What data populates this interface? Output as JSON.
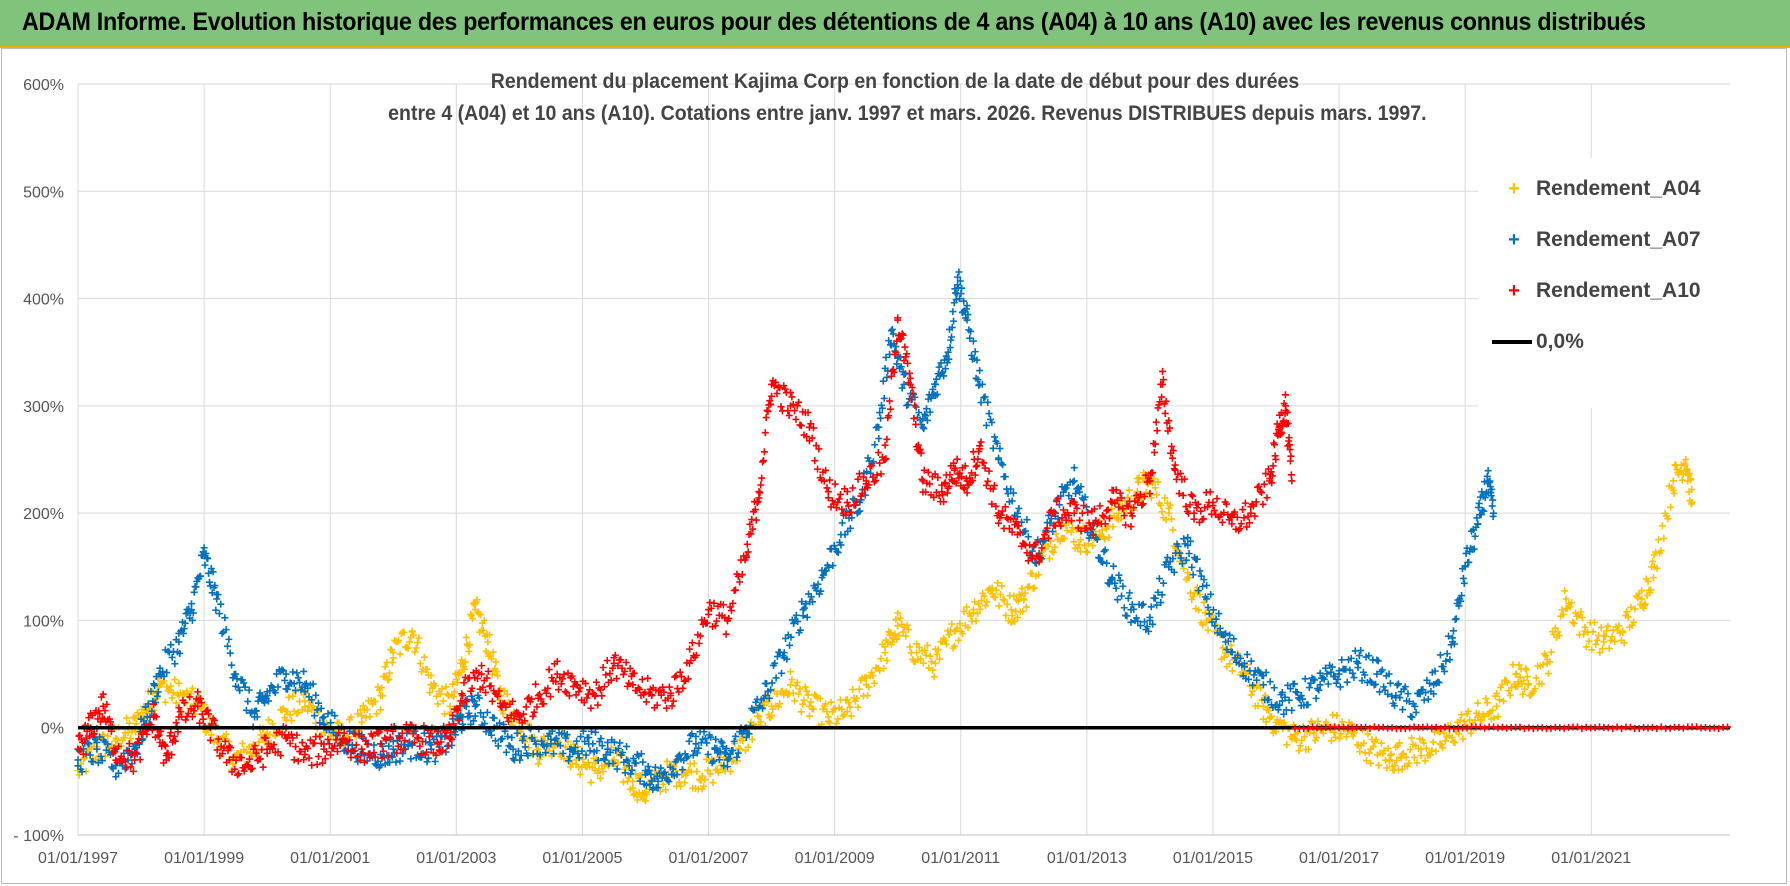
{
  "header": {
    "title": "ADAM Informe. Evolution historique des performances en euros pour des détentions de 4 ans (A04) à 10 ans (A10) avec les revenus connus distribués"
  },
  "chart_data": {
    "type": "scatter",
    "title_line1": "Rendement du placement Kajima Corp en fonction de la date de début pour des durées",
    "title_line2": "entre 4 (A04) et 10 ans (A10). Cotations entre janv. 1997 et mars. 2026. Revenus DISTRIBUES depuis mars. 1997.",
    "xlim": [
      1997.0,
      2023.2
    ],
    "ylim": [
      -100,
      600
    ],
    "x_ticks": [
      1997,
      1999,
      2001,
      2003,
      2005,
      2007,
      2009,
      2011,
      2013,
      2015,
      2017,
      2019,
      2021
    ],
    "x_tick_labels": [
      "01/01/1997",
      "01/01/1999",
      "01/01/2001",
      "01/01/2003",
      "01/01/2005",
      "01/01/2007",
      "01/01/2009",
      "01/01/2011",
      "01/01/2013",
      "01/01/2015",
      "01/01/2017",
      "01/01/2019",
      "01/01/2021"
    ],
    "y_ticks": [
      -100,
      0,
      100,
      200,
      300,
      400,
      500,
      600
    ],
    "y_tick_labels": [
      "- 100%",
      "0%",
      "100%",
      "200%",
      "300%",
      "400%",
      "500%",
      "600%"
    ],
    "grid": true,
    "legend_position": "top-right",
    "legend": [
      {
        "label": "Rendement_A04",
        "marker": "+",
        "color": "#ffc000"
      },
      {
        "label": "Rendement_A07",
        "marker": "+",
        "color": "#0070c0"
      },
      {
        "label": "Rendement_A10",
        "marker": "+",
        "color": "#ff0000"
      },
      {
        "label": "0,0%",
        "marker": "line",
        "color": "#000000"
      }
    ],
    "series": [
      {
        "name": "Rendement_A04",
        "color": "#ffc000",
        "points": [
          [
            1997.0,
            -40
          ],
          [
            1997.3,
            -20
          ],
          [
            1997.6,
            -10
          ],
          [
            1997.9,
            0
          ],
          [
            1998.1,
            20
          ],
          [
            1998.3,
            40
          ],
          [
            1998.6,
            30
          ],
          [
            1998.9,
            20
          ],
          [
            1999.2,
            -10
          ],
          [
            1999.5,
            -30
          ],
          [
            1999.8,
            -20
          ],
          [
            2000.0,
            -5
          ],
          [
            2000.3,
            15
          ],
          [
            2000.6,
            25
          ],
          [
            2000.9,
            0
          ],
          [
            2001.2,
            -10
          ],
          [
            2001.5,
            5
          ],
          [
            2001.8,
            30
          ],
          [
            2002.0,
            70
          ],
          [
            2002.3,
            90
          ],
          [
            2002.6,
            40
          ],
          [
            2002.9,
            20
          ],
          [
            2003.1,
            60
          ],
          [
            2003.3,
            110
          ],
          [
            2003.5,
            80
          ],
          [
            2003.7,
            30
          ],
          [
            2004.0,
            5
          ],
          [
            2004.3,
            -20
          ],
          [
            2004.6,
            -10
          ],
          [
            2004.9,
            -30
          ],
          [
            2005.2,
            -40
          ],
          [
            2005.5,
            -30
          ],
          [
            2005.8,
            -50
          ],
          [
            2006.0,
            -60
          ],
          [
            2006.3,
            -45
          ],
          [
            2006.6,
            -40
          ],
          [
            2006.9,
            -45
          ],
          [
            2007.2,
            -35
          ],
          [
            2007.5,
            -20
          ],
          [
            2007.8,
            10
          ],
          [
            2008.0,
            20
          ],
          [
            2008.3,
            40
          ],
          [
            2008.6,
            20
          ],
          [
            2008.9,
            10
          ],
          [
            2009.2,
            15
          ],
          [
            2009.5,
            40
          ],
          [
            2009.8,
            70
          ],
          [
            2010.0,
            95
          ],
          [
            2010.3,
            70
          ],
          [
            2010.6,
            60
          ],
          [
            2010.9,
            90
          ],
          [
            2011.2,
            110
          ],
          [
            2011.5,
            130
          ],
          [
            2011.8,
            110
          ],
          [
            2012.0,
            120
          ],
          [
            2012.3,
            160
          ],
          [
            2012.6,
            190
          ],
          [
            2012.9,
            175
          ],
          [
            2013.2,
            180
          ],
          [
            2013.5,
            200
          ],
          [
            2013.8,
            220
          ],
          [
            2014.0,
            230
          ],
          [
            2014.3,
            200
          ],
          [
            2014.6,
            140
          ],
          [
            2014.9,
            100
          ],
          [
            2015.2,
            70
          ],
          [
            2015.5,
            50
          ],
          [
            2015.8,
            20
          ],
          [
            2016.0,
            5
          ],
          [
            2016.3,
            -10
          ],
          [
            2016.6,
            -5
          ],
          [
            2016.9,
            0
          ],
          [
            2017.2,
            -5
          ],
          [
            2017.5,
            -20
          ],
          [
            2017.8,
            -30
          ],
          [
            2018.0,
            -25
          ],
          [
            2018.3,
            -20
          ],
          [
            2018.6,
            -15
          ],
          [
            2018.9,
            0
          ],
          [
            2019.2,
            10
          ],
          [
            2019.5,
            20
          ],
          [
            2019.8,
            50
          ],
          [
            2020.0,
            40
          ],
          [
            2020.3,
            60
          ],
          [
            2020.6,
            120
          ],
          [
            2020.9,
            90
          ],
          [
            2021.2,
            80
          ],
          [
            2021.5,
            90
          ],
          [
            2021.8,
            120
          ],
          [
            2022.0,
            150
          ],
          [
            2022.3,
            230
          ],
          [
            2022.5,
            250
          ],
          [
            2022.6,
            210
          ]
        ]
      },
      {
        "name": "Rendement_A07",
        "color": "#0070c0",
        "points": [
          [
            1997.0,
            -30
          ],
          [
            1997.3,
            -20
          ],
          [
            1997.6,
            -35
          ],
          [
            1997.9,
            -20
          ],
          [
            1998.1,
            10
          ],
          [
            1998.3,
            50
          ],
          [
            1998.6,
            80
          ],
          [
            1998.8,
            110
          ],
          [
            1999.0,
            160
          ],
          [
            1999.2,
            120
          ],
          [
            1999.5,
            50
          ],
          [
            1999.8,
            10
          ],
          [
            2000.0,
            30
          ],
          [
            2000.3,
            50
          ],
          [
            2000.6,
            40
          ],
          [
            2000.9,
            10
          ],
          [
            2001.2,
            -10
          ],
          [
            2001.5,
            -20
          ],
          [
            2001.8,
            -25
          ],
          [
            2002.0,
            -20
          ],
          [
            2002.3,
            -15
          ],
          [
            2002.6,
            -20
          ],
          [
            2002.9,
            -10
          ],
          [
            2003.1,
            10
          ],
          [
            2003.3,
            20
          ],
          [
            2003.6,
            0
          ],
          [
            2003.9,
            -20
          ],
          [
            2004.2,
            -10
          ],
          [
            2004.5,
            -15
          ],
          [
            2004.8,
            -20
          ],
          [
            2005.1,
            -15
          ],
          [
            2005.4,
            -20
          ],
          [
            2005.7,
            -30
          ],
          [
            2006.0,
            -40
          ],
          [
            2006.2,
            -50
          ],
          [
            2006.5,
            -30
          ],
          [
            2006.8,
            -15
          ],
          [
            2007.1,
            -20
          ],
          [
            2007.3,
            -30
          ],
          [
            2007.6,
            0
          ],
          [
            2007.9,
            30
          ],
          [
            2008.2,
            70
          ],
          [
            2008.5,
            110
          ],
          [
            2008.8,
            140
          ],
          [
            2009.1,
            180
          ],
          [
            2009.4,
            210
          ],
          [
            2009.7,
            280
          ],
          [
            2009.9,
            370
          ],
          [
            2010.1,
            320
          ],
          [
            2010.4,
            280
          ],
          [
            2010.6,
            320
          ],
          [
            2010.8,
            350
          ],
          [
            2010.95,
            420
          ],
          [
            2011.1,
            380
          ],
          [
            2011.3,
            320
          ],
          [
            2011.6,
            250
          ],
          [
            2011.9,
            200
          ],
          [
            2012.2,
            160
          ],
          [
            2012.5,
            200
          ],
          [
            2012.8,
            230
          ],
          [
            2013.1,
            180
          ],
          [
            2013.4,
            140
          ],
          [
            2013.7,
            110
          ],
          [
            2014.0,
            100
          ],
          [
            2014.3,
            150
          ],
          [
            2014.6,
            170
          ],
          [
            2014.9,
            120
          ],
          [
            2015.2,
            80
          ],
          [
            2015.5,
            60
          ],
          [
            2015.8,
            40
          ],
          [
            2016.1,
            25
          ],
          [
            2016.4,
            30
          ],
          [
            2016.7,
            40
          ],
          [
            2017.0,
            50
          ],
          [
            2017.3,
            60
          ],
          [
            2017.6,
            50
          ],
          [
            2017.9,
            30
          ],
          [
            2018.2,
            20
          ],
          [
            2018.5,
            40
          ],
          [
            2018.8,
            80
          ],
          [
            2019.0,
            150
          ],
          [
            2019.2,
            190
          ],
          [
            2019.35,
            230
          ],
          [
            2019.45,
            200
          ]
        ]
      },
      {
        "name": "Rendement_A10",
        "color": "#ff0000",
        "points": [
          [
            1997.0,
            -20
          ],
          [
            1997.2,
            0
          ],
          [
            1997.4,
            20
          ],
          [
            1997.6,
            -20
          ],
          [
            1997.9,
            -30
          ],
          [
            1998.2,
            10
          ],
          [
            1998.4,
            -30
          ],
          [
            1998.6,
            10
          ],
          [
            1998.9,
            20
          ],
          [
            1999.1,
            0
          ],
          [
            1999.4,
            -30
          ],
          [
            1999.7,
            -35
          ],
          [
            2000.0,
            -20
          ],
          [
            2000.3,
            -10
          ],
          [
            2000.6,
            -25
          ],
          [
            2000.9,
            -20
          ],
          [
            2001.2,
            -10
          ],
          [
            2001.5,
            -20
          ],
          [
            2001.8,
            -15
          ],
          [
            2002.1,
            -10
          ],
          [
            2002.4,
            -10
          ],
          [
            2002.7,
            -15
          ],
          [
            2002.9,
            -10
          ],
          [
            2003.1,
            30
          ],
          [
            2003.4,
            50
          ],
          [
            2003.7,
            20
          ],
          [
            2004.0,
            10
          ],
          [
            2004.3,
            30
          ],
          [
            2004.6,
            50
          ],
          [
            2004.9,
            40
          ],
          [
            2005.2,
            30
          ],
          [
            2005.5,
            60
          ],
          [
            2005.8,
            40
          ],
          [
            2006.1,
            30
          ],
          [
            2006.4,
            30
          ],
          [
            2006.7,
            60
          ],
          [
            2007.0,
            110
          ],
          [
            2007.3,
            100
          ],
          [
            2007.6,
            160
          ],
          [
            2007.8,
            220
          ],
          [
            2008.0,
            320
          ],
          [
            2008.3,
            300
          ],
          [
            2008.6,
            280
          ],
          [
            2008.9,
            220
          ],
          [
            2009.2,
            210
          ],
          [
            2009.5,
            230
          ],
          [
            2009.8,
            250
          ],
          [
            2010.0,
            380
          ],
          [
            2010.2,
            320
          ],
          [
            2010.4,
            230
          ],
          [
            2010.7,
            220
          ],
          [
            2010.9,
            240
          ],
          [
            2011.1,
            230
          ],
          [
            2011.3,
            260
          ],
          [
            2011.6,
            200
          ],
          [
            2011.9,
            180
          ],
          [
            2012.2,
            160
          ],
          [
            2012.5,
            200
          ],
          [
            2012.8,
            200
          ],
          [
            2013.1,
            190
          ],
          [
            2013.4,
            210
          ],
          [
            2013.7,
            200
          ],
          [
            2014.0,
            230
          ],
          [
            2014.2,
            320
          ],
          [
            2014.4,
            240
          ],
          [
            2014.7,
            200
          ],
          [
            2015.0,
            210
          ],
          [
            2015.3,
            190
          ],
          [
            2015.6,
            200
          ],
          [
            2015.9,
            230
          ],
          [
            2016.05,
            280
          ],
          [
            2016.15,
            300
          ],
          [
            2016.25,
            230
          ]
        ]
      }
    ],
    "zero_line": 0
  }
}
